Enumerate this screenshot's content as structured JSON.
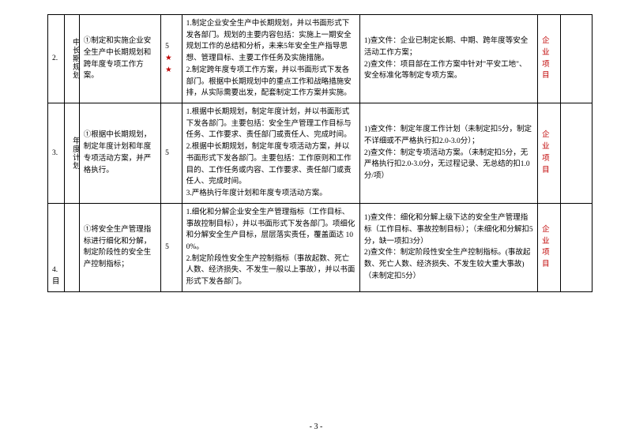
{
  "rows": [
    {
      "idx": "2.",
      "name": "中长期规划",
      "req": "①制定和实施企业安全生产中长期规划和跨年度专项工作方案。",
      "score_black": "5",
      "score_red": "★★",
      "std": "1.制定企业安全生产中长期规划，并以书面形式下发各部门。规划的主要内容包括：实施上一期安全规划工作的总结和分析，未来5年安全生产指导思想、管理目标、主要工作任务及实施措施。\n2.制定跨年度专项工作方案，并以书面形式下发各部门。根据中长期规划中的重点工作和战略措施安排，从实际需要出发，配套制定工作方案并实施。",
      "eval": "1)查文件：企业已制定长期、中期、跨年度等安全活动工作方案；\n2)查文件：项目部在工作方案中针对\"平安工地\"、安全标准化等制定专项方案。",
      "cat": "企业\n项目"
    },
    {
      "idx": "3.",
      "name": "年度计划",
      "req": "①根据中长期规划，制定年度计划和年度专项活动方案，并严格执行。",
      "score_black": "5",
      "score_red": "",
      "std": "1.根据中长期规划，制定年度计划，并以书面形式下发各部门。主要包括：安全生产管理工作目标与任务、工作要求、责任部门或责任人、完成时间。\n2.根据中长期规划，制定年度专项活动方案，并以书面形式下发各部门。主要包括：工作原则和工作目的、工作任务或内容、工作要求、责任部门或责任人、完成时间。\n3.严格执行年度计划和年度专项活动方案。",
      "eval": "1)查文件：制定年度工作计划（未制定扣5分，制定不详细或不严格执行扣2.0-3.0分）；\n2)查文件：制定专项活动方案。（未制定扣5分，无严格执行扣2.0-3.0分，无过程记录、无总结的扣1.0分/项）",
      "cat": "企业\n项目"
    },
    {
      "idx": "4.",
      "name": "目",
      "req": "①将安全生产管理指标进行细化和分解，制定阶段性的安全生产控制指标；",
      "score_black": "5",
      "score_red": "",
      "std": "1.细化和分解企业安全生产管理指标（工作目标、事故控制目标），并以书面形式下发各部门。项细化和分解安全生产目标，层层落实责任，覆盖面达 100%。\n2.制定阶段性安全生产控制指标（事故起数、死亡人数、经济损失、不发生一般以上事故），并以书面形式下发各部门。",
      "eval": "1)查文件：细化和分解上级下达的安全生产管理指标（工作目标、事故控制目标）；（未细化和分解扣5分，缺一项扣3分）\n2)查文件：制定阶段性安全生产控制指标。(事故起数、死亡人数、经济损失、不发生较大重大事故)（未制定扣5分）",
      "cat": "企业\n项目"
    }
  ],
  "footer": "- 3 -",
  "colors": {
    "red": "#c00000"
  }
}
